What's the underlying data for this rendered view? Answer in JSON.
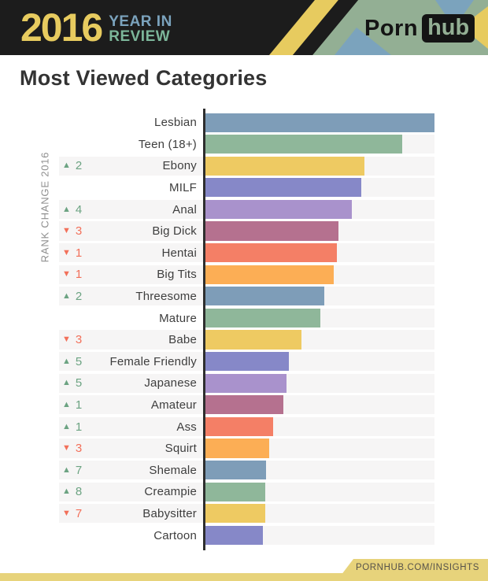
{
  "header": {
    "year": "2016",
    "tagline_line1": "YEAR IN",
    "tagline_line2": "REVIEW",
    "logo_part1": "Porn",
    "logo_part2": "hub",
    "colors": {
      "background": "#1c1c1c",
      "yellow": "#e7cb5f",
      "blue": "#7ba3bd",
      "green": "#7cb69a",
      "logo_panel_green": "#93af94"
    }
  },
  "title": "Most Viewed Categories",
  "chart_data": {
    "type": "bar",
    "orientation": "horizontal",
    "title": "Most Viewed Categories",
    "axis_label": "RANK CHANGE 2016",
    "value_note": "no numeric axis shown; values are bar lengths as percent of the top category",
    "xlim": [
      0,
      100
    ],
    "grid": false,
    "legend": false,
    "rank_up_color": "#6ca382",
    "rank_down_color": "#f2705a",
    "track_color": "#f6f5f5",
    "icons": {
      "up": "▲",
      "down": "▼"
    },
    "categories": [
      "Lesbian",
      "Teen (18+)",
      "Ebony",
      "MILF",
      "Anal",
      "Big Dick",
      "Hentai",
      "Big Tits",
      "Threesome",
      "Mature",
      "Babe",
      "Female Friendly",
      "Japanese",
      "Amateur",
      "Ass",
      "Squirt",
      "Shemale",
      "Creampie",
      "Babysitter",
      "Cartoon"
    ],
    "values": [
      100,
      86,
      69.5,
      68,
      64,
      58,
      57.5,
      56,
      52,
      50,
      42,
      36.5,
      35.5,
      34,
      29.5,
      28,
      26.5,
      26,
      26,
      25
    ],
    "rows": [
      {
        "category": "Lesbian",
        "value": 100,
        "color": "#7e9db8",
        "rank_change": null
      },
      {
        "category": "Teen (18+)",
        "value": 86,
        "color": "#8fb79a",
        "rank_change": null
      },
      {
        "category": "Ebony",
        "value": 69.5,
        "color": "#eeca62",
        "rank_change": {
          "direction": "up",
          "amount": 2
        }
      },
      {
        "category": "MILF",
        "value": 68,
        "color": "#8688c8",
        "rank_change": null
      },
      {
        "category": "Anal",
        "value": 64,
        "color": "#a992cc",
        "rank_change": {
          "direction": "up",
          "amount": 4
        }
      },
      {
        "category": "Big Dick",
        "value": 58,
        "color": "#b5718f",
        "rank_change": {
          "direction": "down",
          "amount": 3
        }
      },
      {
        "category": "Hentai",
        "value": 57.5,
        "color": "#f47f66",
        "rank_change": {
          "direction": "down",
          "amount": 1
        }
      },
      {
        "category": "Big Tits",
        "value": 56,
        "color": "#fcae55",
        "rank_change": {
          "direction": "down",
          "amount": 1
        }
      },
      {
        "category": "Threesome",
        "value": 52,
        "color": "#7e9db8",
        "rank_change": {
          "direction": "up",
          "amount": 2
        }
      },
      {
        "category": "Mature",
        "value": 50,
        "color": "#8fb79a",
        "rank_change": null
      },
      {
        "category": "Babe",
        "value": 42,
        "color": "#eeca62",
        "rank_change": {
          "direction": "down",
          "amount": 3
        }
      },
      {
        "category": "Female Friendly",
        "value": 36.5,
        "color": "#8688c8",
        "rank_change": {
          "direction": "up",
          "amount": 5
        }
      },
      {
        "category": "Japanese",
        "value": 35.5,
        "color": "#a992cc",
        "rank_change": {
          "direction": "up",
          "amount": 5
        }
      },
      {
        "category": "Amateur",
        "value": 34,
        "color": "#b5718f",
        "rank_change": {
          "direction": "up",
          "amount": 1
        }
      },
      {
        "category": "Ass",
        "value": 29.5,
        "color": "#f47f66",
        "rank_change": {
          "direction": "up",
          "amount": 1
        }
      },
      {
        "category": "Squirt",
        "value": 28,
        "color": "#fcae55",
        "rank_change": {
          "direction": "down",
          "amount": 3
        }
      },
      {
        "category": "Shemale",
        "value": 26.5,
        "color": "#7e9db8",
        "rank_change": {
          "direction": "up",
          "amount": 7
        }
      },
      {
        "category": "Creampie",
        "value": 26,
        "color": "#8fb79a",
        "rank_change": {
          "direction": "up",
          "amount": 8
        }
      },
      {
        "category": "Babysitter",
        "value": 26,
        "color": "#eeca62",
        "rank_change": {
          "direction": "down",
          "amount": 7
        }
      },
      {
        "category": "Cartoon",
        "value": 25,
        "color": "#8688c8",
        "rank_change": null
      }
    ]
  },
  "footer": {
    "url_label": "PORNHUB.COM/INSIGHTS",
    "colors": {
      "band": "#e7d37b",
      "text": "#56524a"
    }
  }
}
